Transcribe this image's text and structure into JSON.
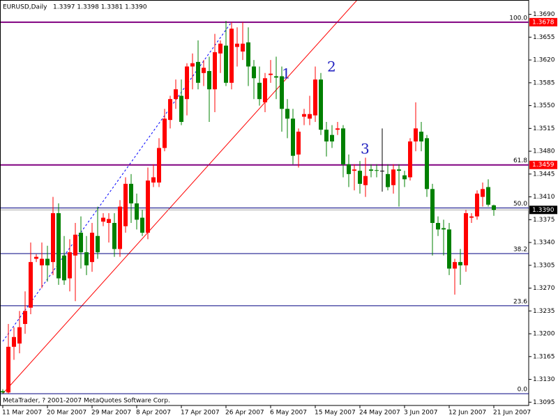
{
  "chart_data": {
    "type": "candlestick",
    "title": "EURUSD,Daily",
    "header_ohlc": "1.3397 1.3398 1.3381 1.3390",
    "footer": "MetaTrader, ? 2001-2007 MetaQuotes Software Corp.",
    "up_color": "#ff0000",
    "down_color": "#008000",
    "categories": [
      "11 Mar 2007",
      null,
      null,
      null,
      null,
      null,
      null,
      null,
      "20 Mar 2007",
      null,
      null,
      null,
      null,
      null,
      null,
      null,
      "29 Mar 2007",
      null,
      null,
      null,
      null,
      null,
      null,
      null,
      "8 Apr 2007",
      null,
      null,
      null,
      null,
      null,
      null,
      null,
      "17 Apr 2007",
      null,
      null,
      null,
      null,
      null,
      null,
      null,
      "26 Apr 2007",
      null,
      null,
      null,
      null,
      null,
      null,
      null,
      "6 May 2007",
      null,
      null,
      null,
      null,
      null,
      null,
      null,
      "15 May 2007",
      null,
      null,
      null,
      null,
      null,
      null,
      null,
      "24 May 2007",
      null,
      null,
      null,
      null,
      null,
      null,
      null,
      "3 Jun 2007",
      null,
      null,
      null,
      null,
      null,
      null,
      null,
      "12 Jun 2007",
      null,
      null,
      null,
      null,
      null,
      null,
      null,
      "21 Jun 2007"
    ],
    "open": [
      1.3112,
      1.311,
      1.318,
      1.3185,
      1.3215,
      1.324,
      1.3315,
      1.3305,
      1.3315,
      1.331,
      1.3385,
      1.332,
      1.3285,
      1.332,
      1.3355,
      1.3325,
      1.331,
      1.335,
      1.3372,
      1.337,
      1.337,
      1.333,
      1.3365,
      1.343,
      1.34,
      1.3378,
      1.3355,
      1.3432,
      1.3432,
      1.3485,
      1.3528,
      1.356,
      1.3565,
      1.356,
      1.361,
      1.3617,
      1.36,
      1.3603,
      1.3575,
      1.363,
      1.3642,
      1.3585,
      1.364,
      1.3633,
      1.3647,
      1.361,
      1.3585,
      1.3555,
      1.3597,
      1.3595,
      1.3595,
      1.3545,
      1.353,
      1.3475,
      1.3533,
      1.353,
      1.3535,
      1.359,
      1.3513,
      1.3505,
      1.3513,
      1.3515,
      1.346,
      1.345,
      1.345,
      1.3428,
      1.3452,
      1.3451,
      1.345,
      1.3445,
      1.3428,
      1.3452,
      1.3443,
      1.344,
      1.3495,
      1.351,
      1.35,
      1.3422,
      1.337,
      1.3362,
      1.336,
      1.33,
      1.331,
      1.3305,
      1.3378,
      1.338,
      1.341,
      1.3425,
      1.3397
    ],
    "high": [
      1.3115,
      1.3215,
      1.321,
      1.3235,
      1.3265,
      1.334,
      1.3322,
      1.334,
      1.3335,
      1.341,
      1.34,
      1.335,
      1.3345,
      1.337,
      1.338,
      1.335,
      1.337,
      1.3395,
      1.3385,
      1.3385,
      1.3385,
      1.3405,
      1.344,
      1.3445,
      1.3415,
      1.339,
      1.3455,
      1.346,
      1.35,
      1.3545,
      1.3565,
      1.359,
      1.359,
      1.3615,
      1.363,
      1.365,
      1.362,
      1.3625,
      1.366,
      1.365,
      1.368,
      1.3678,
      1.367,
      1.3678,
      1.367,
      1.362,
      1.361,
      1.36,
      1.362,
      1.3625,
      1.361,
      1.356,
      1.3545,
      1.3515,
      1.3545,
      1.3565,
      1.361,
      1.36,
      1.3525,
      1.352,
      1.3525,
      1.352,
      1.3475,
      1.346,
      1.3465,
      1.347,
      1.346,
      1.346,
      1.3515,
      1.346,
      1.346,
      1.346,
      1.345,
      1.35,
      1.3555,
      1.3525,
      1.3505,
      1.343,
      1.338,
      1.3375,
      1.337,
      1.3315,
      1.333,
      1.339,
      1.3385,
      1.342,
      1.3432,
      1.3437,
      1.3398
    ],
    "low": [
      1.3108,
      1.3108,
      1.316,
      1.317,
      1.32,
      1.323,
      1.331,
      1.327,
      1.328,
      1.329,
      1.3275,
      1.3275,
      1.3265,
      1.325,
      1.33,
      1.329,
      1.3295,
      1.3315,
      1.3365,
      1.334,
      1.3318,
      1.3318,
      1.3355,
      1.337,
      1.336,
      1.335,
      1.3345,
      1.3425,
      1.3425,
      1.348,
      1.3515,
      1.3545,
      1.352,
      1.3535,
      1.3575,
      1.3575,
      1.358,
      1.3525,
      1.354,
      1.36,
      1.358,
      1.3575,
      1.361,
      1.362,
      1.358,
      1.356,
      1.355,
      1.354,
      1.3585,
      1.356,
      1.351,
      1.35,
      1.346,
      1.3455,
      1.352,
      1.352,
      1.3525,
      1.3505,
      1.3472,
      1.3485,
      1.3505,
      1.344,
      1.3425,
      1.342,
      1.3415,
      1.341,
      1.344,
      1.344,
      1.3418,
      1.342,
      1.3415,
      1.3395,
      1.3425,
      1.3435,
      1.348,
      1.348,
      1.341,
      1.332,
      1.335,
      1.332,
      1.329,
      1.326,
      1.3275,
      1.3295,
      1.337,
      1.3375,
      1.3395,
      1.3395,
      1.3381
    ],
    "close": [
      1.311,
      1.318,
      1.3195,
      1.321,
      1.3235,
      1.331,
      1.3318,
      1.3315,
      1.3305,
      1.3385,
      1.3285,
      1.3282,
      1.3325,
      1.3352,
      1.3325,
      1.3305,
      1.3355,
      1.3325,
      1.3378,
      1.3376,
      1.333,
      1.3395,
      1.343,
      1.34,
      1.3375,
      1.3355,
      1.3435,
      1.344,
      1.3485,
      1.353,
      1.356,
      1.3575,
      1.3525,
      1.361,
      1.3615,
      1.3585,
      1.3608,
      1.3575,
      1.3632,
      1.3645,
      1.3585,
      1.3668,
      1.3645,
      1.3645,
      1.361,
      1.3592,
      1.356,
      1.3592,
      1.3599,
      1.3593,
      1.3545,
      1.353,
      1.3473,
      1.351,
      1.3537,
      1.3537,
      1.359,
      1.3513,
      1.3495,
      1.3495,
      1.3515,
      1.346,
      1.3445,
      1.3452,
      1.343,
      1.3442,
      1.345,
      1.345,
      1.345,
      1.3425,
      1.3452,
      1.345,
      1.3437,
      1.3495,
      1.3515,
      1.3495,
      1.3422,
      1.337,
      1.336,
      1.336,
      1.33,
      1.331,
      1.3305,
      1.3385,
      1.338,
      1.3415,
      1.3422,
      1.3398,
      1.339
    ],
    "ylim": [
      1.309,
      1.3712
    ],
    "yticks": [
      {
        "value": 1.369,
        "label": "1.3690"
      },
      1.3655,
      {
        "value": 1.362,
        "label": "1.3620"
      },
      1.3585,
      {
        "value": 1.355,
        "label": "1.3550"
      },
      1.3515,
      {
        "value": 1.348,
        "label": "1.3480"
      },
      1.3445,
      {
        "value": 1.341,
        "label": "1.3410"
      },
      1.3375,
      {
        "value": 1.334,
        "label": "1.3340"
      },
      1.3305,
      {
        "value": 1.327,
        "label": "1.3270"
      },
      1.3235,
      {
        "value": 1.32,
        "label": "1.3200"
      },
      1.3165,
      {
        "value": 1.313,
        "label": "1.3130"
      },
      1.3095
    ],
    "levels": [
      {
        "name": "100.0",
        "value": 1.3678,
        "color": "#800080"
      },
      {
        "name": "61.8",
        "value": 1.3459,
        "color": "#800080"
      },
      {
        "name": "50.0",
        "value": 1.3393,
        "color": "#000080"
      },
      {
        "name": "38.2",
        "value": 1.3323,
        "color": "#000080"
      },
      {
        "name": "23.6",
        "value": 1.3243,
        "color": "#000080"
      },
      {
        "name": "0.0",
        "value": 1.3108,
        "color": "#000080"
      }
    ],
    "price_boxes": [
      {
        "value": 1.3678,
        "color": "#ff0000"
      },
      {
        "value": 1.3459,
        "color": "#ff0000"
      },
      {
        "value": {
          "value": 1.339,
          "label": "1.3390"
        },
        "color": "#000000"
      }
    ],
    "annotations": [
      "1",
      "2",
      "3"
    ]
  }
}
